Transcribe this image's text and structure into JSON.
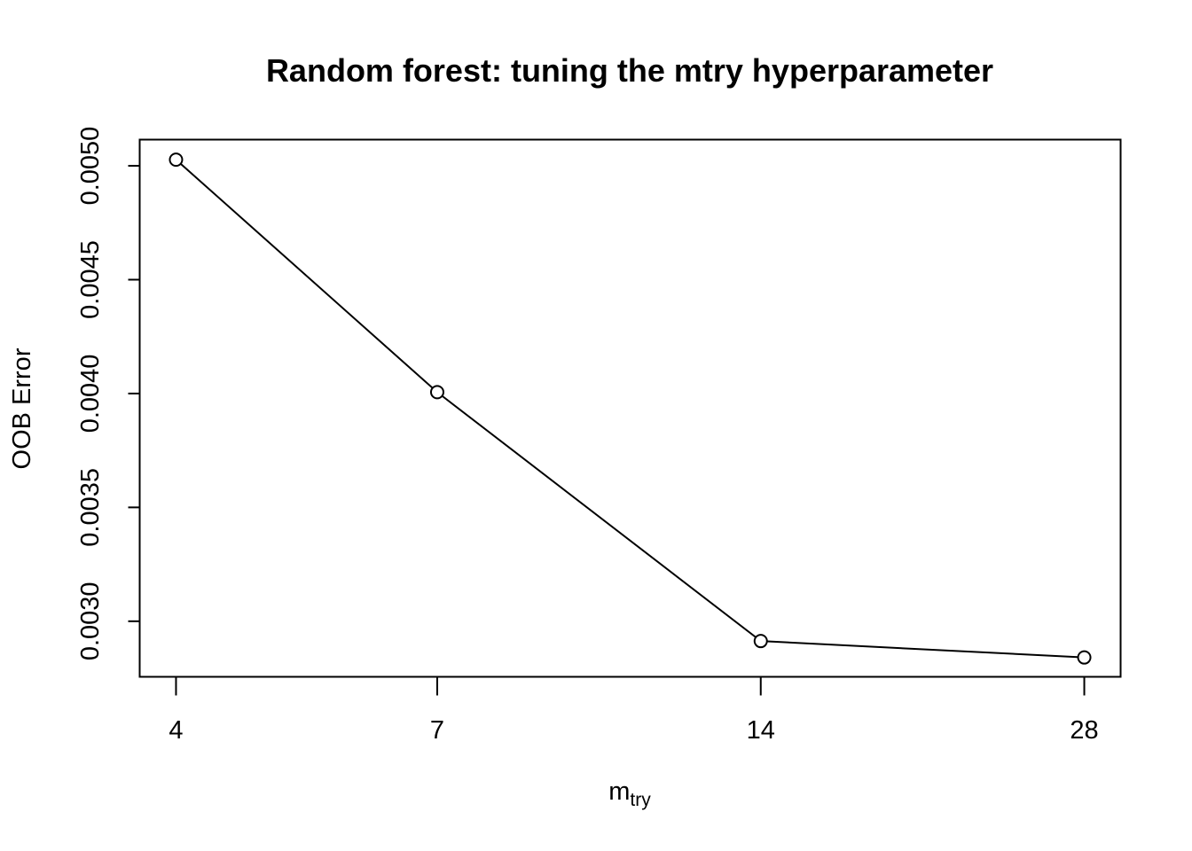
{
  "chart_data": {
    "type": "line",
    "title": "Random forest: tuning the mtry hyperparameter",
    "xlabel": "m",
    "xlabel_subscript": "try",
    "ylabel": "OOB Error",
    "categories": [
      "4",
      "7",
      "14",
      "28"
    ],
    "x": [
      4,
      7,
      14,
      28
    ],
    "y": [
      0.005027,
      0.004006,
      0.002913,
      0.002841
    ],
    "yticks": [
      "0.0030",
      "0.0035",
      "0.0040",
      "0.0045",
      "0.0050"
    ],
    "ytick_values": [
      0.003,
      0.0035,
      0.004,
      0.0045,
      0.005
    ],
    "ylim": [
      0.002756,
      0.005115
    ],
    "grid": false,
    "line_color": "#000000",
    "marker": "open-circle"
  }
}
